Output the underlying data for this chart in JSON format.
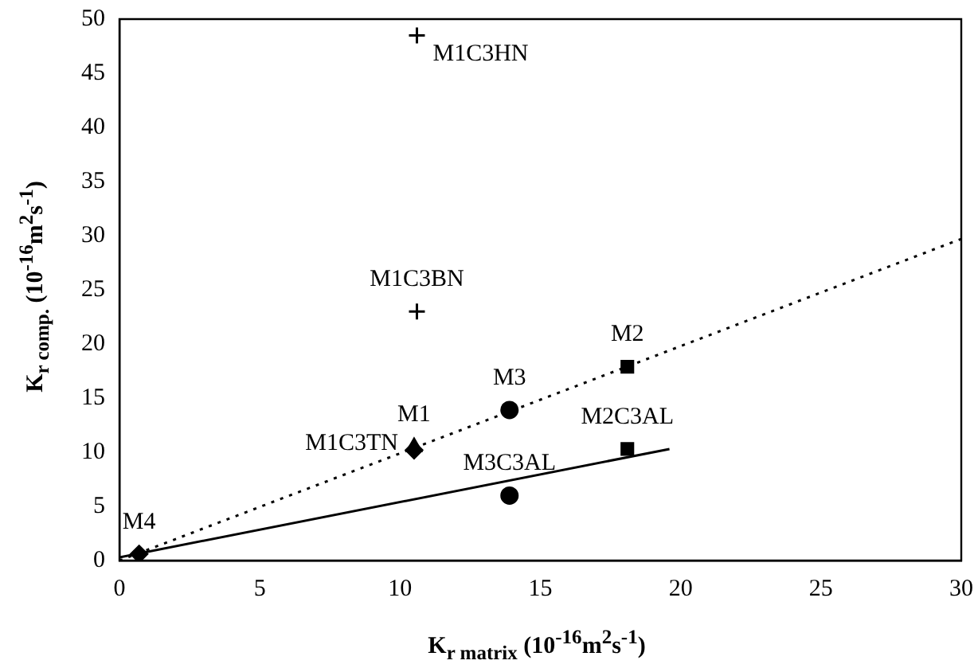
{
  "chart_data": {
    "type": "scatter",
    "xlabel": "K$_{r matrix}$ (10$^{-16}$m$^{2}$s$^{-1}$)",
    "ylabel": "K$_{r comp.}$ (10$^{-16}$m$^{2}$s$^{-1}$)",
    "xlim": [
      0,
      30
    ],
    "xticks": [
      0,
      5,
      10,
      15,
      20,
      25,
      30
    ],
    "ylim": [
      0,
      50
    ],
    "yticks": [
      0,
      5,
      10,
      15,
      20,
      25,
      30,
      35,
      40,
      45,
      50
    ],
    "grid": false,
    "legend": false,
    "series": [
      {
        "name": "M1C3HN",
        "color": "#000000",
        "marker": "cross",
        "x": [
          10.6
        ],
        "values": [
          48.5
        ]
      },
      {
        "name": "M1C3BN",
        "color": "#000000",
        "marker": "cross",
        "x": [
          10.6
        ],
        "values": [
          23
        ]
      },
      {
        "name": "M1",
        "color": "#000000",
        "marker": "triangle",
        "x": [
          10.5
        ],
        "values": [
          10.5
        ]
      },
      {
        "name": "M1C3TN",
        "color": "#000000",
        "marker": "diamond",
        "x": [
          10.5
        ],
        "values": [
          10.2
        ]
      },
      {
        "name": "M3",
        "color": "#000000",
        "marker": "circle",
        "x": [
          13.9
        ],
        "values": [
          13.9
        ]
      },
      {
        "name": "M2",
        "color": "#000000",
        "marker": "square",
        "x": [
          18.1
        ],
        "values": [
          17.9
        ]
      },
      {
        "name": "M2C3AL",
        "color": "#000000",
        "marker": "square",
        "x": [
          18.1
        ],
        "values": [
          10.3
        ]
      },
      {
        "name": "M3C3AL",
        "color": "#000000",
        "marker": "circle",
        "x": [
          13.9
        ],
        "values": [
          6.0
        ]
      },
      {
        "name": "M4",
        "color": "#000000",
        "marker": "diamond",
        "x": [
          0.7
        ],
        "values": [
          0.6
        ]
      },
      {
        "type": "line",
        "color": "#000000",
        "line_style": "dotted",
        "marker": "none",
        "x": [
          0,
          30
        ],
        "values": [
          0,
          29.7
        ]
      },
      {
        "type": "line",
        "color": "#000000",
        "line_style": "solid",
        "marker": "none",
        "x": [
          0,
          19.6
        ],
        "values": [
          0.3,
          10.3
        ]
      }
    ]
  }
}
